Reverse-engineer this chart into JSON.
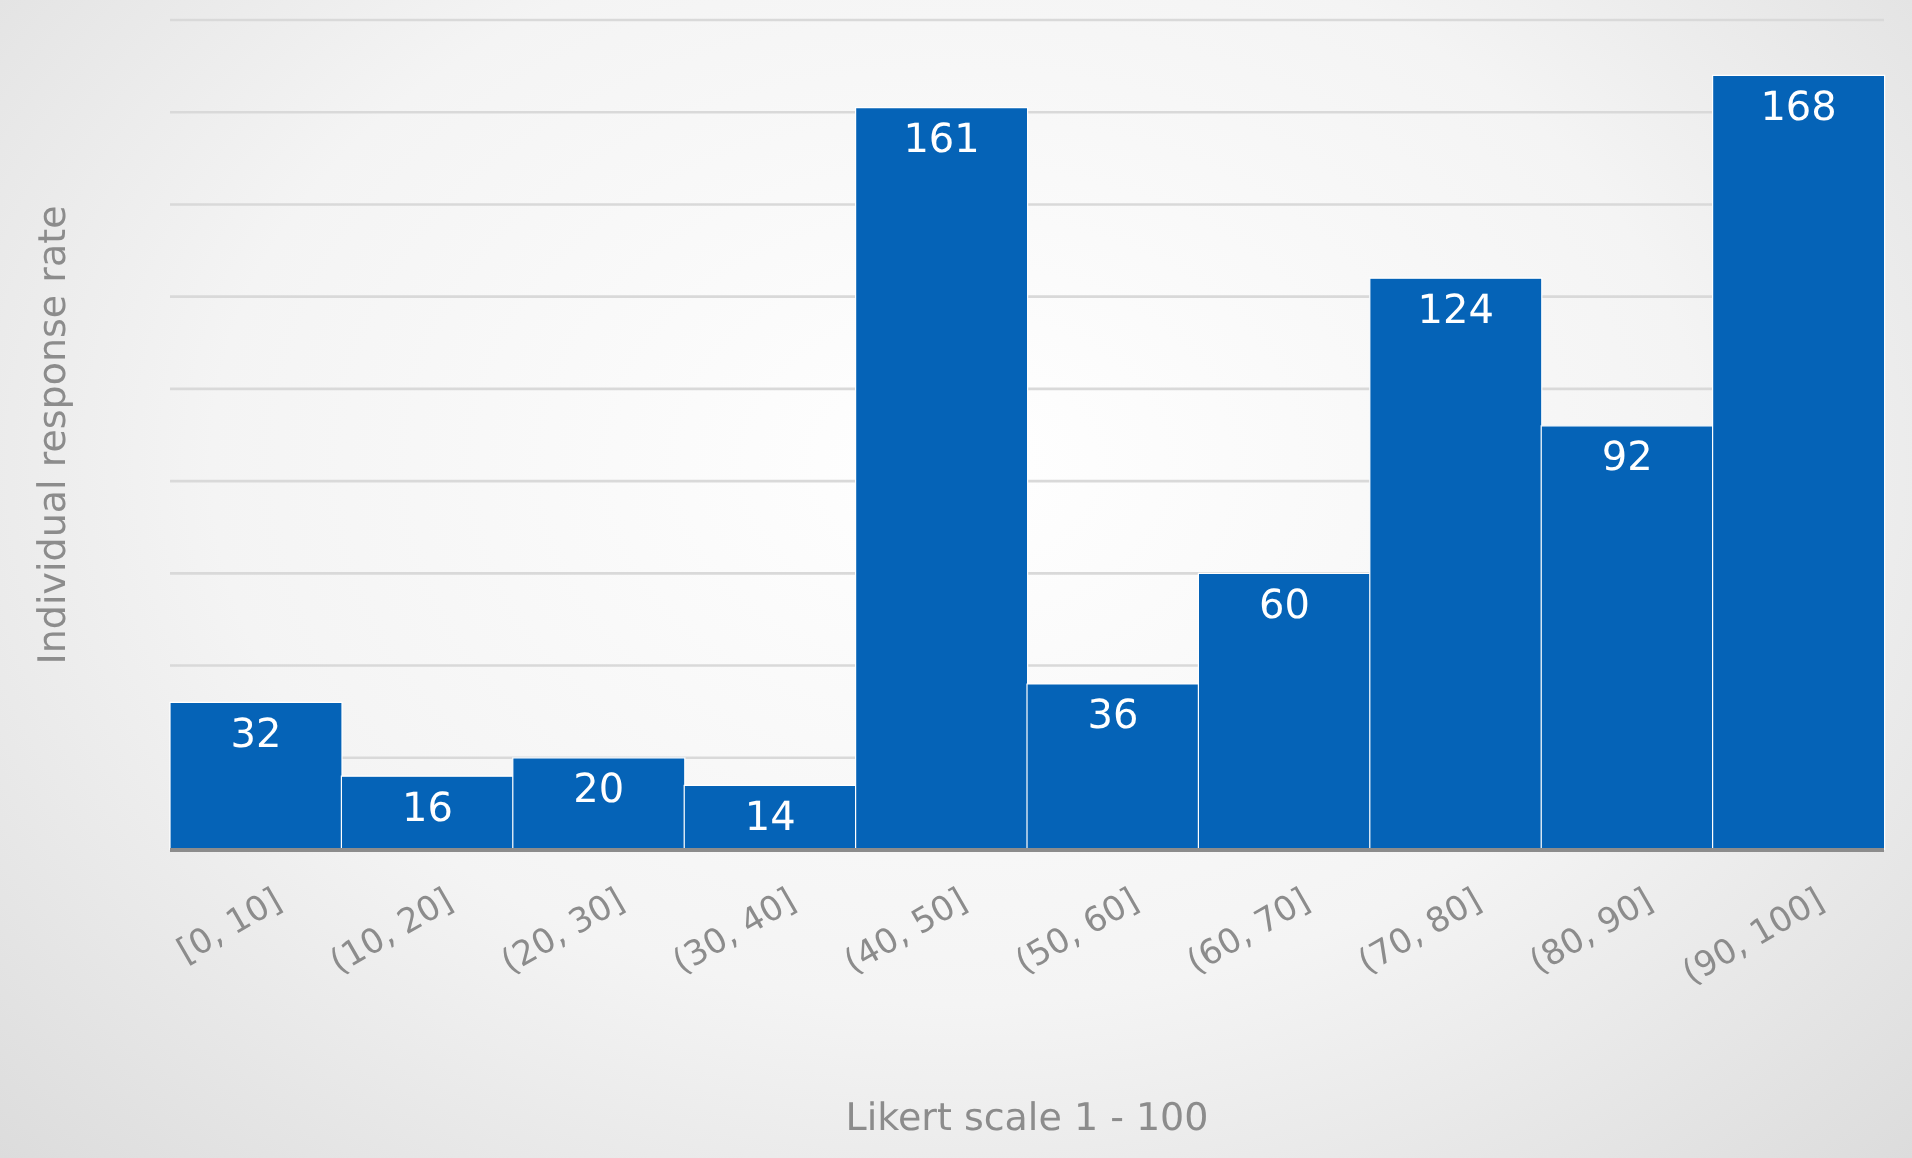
{
  "chart_data": {
    "type": "bar",
    "xlabel": "Likert scale 1 - 100",
    "ylabel": "Individual response rate",
    "categories": [
      "[0, 10]",
      "(10, 20]",
      "(20, 30]",
      "(30, 40]",
      "(40, 50]",
      "(50, 60]",
      "(60, 70]",
      "(70, 80]",
      "(80, 90]",
      "(90, 100]"
    ],
    "values": [
      32,
      16,
      20,
      14,
      161,
      36,
      60,
      124,
      92,
      168
    ],
    "color": "#0563b7",
    "grid": "y",
    "tick_labels": "x",
    "data_labels": true,
    "legend": false
  }
}
